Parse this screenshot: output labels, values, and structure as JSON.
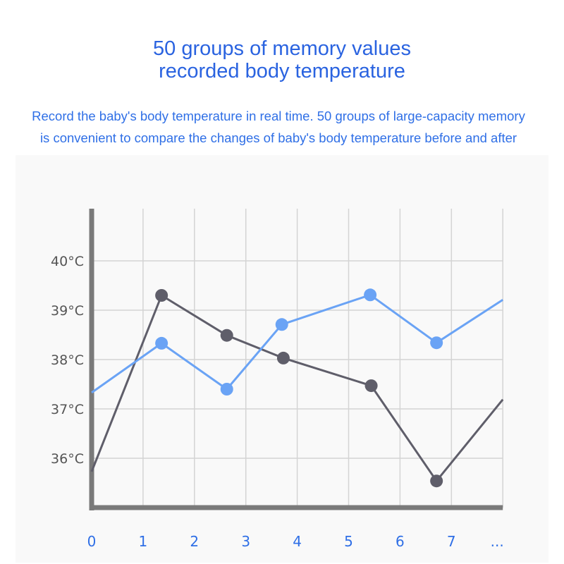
{
  "header": {
    "title_line1": "50 groups of memory values",
    "title_line2": "recorded body temperature",
    "subtitle_line1": "Record the baby's body temperature in real time. 50 groups of large-capacity memory",
    "subtitle_line2": "is convenient to compare the changes of baby's body temperature before and after"
  },
  "chart_data": {
    "type": "line",
    "title": "",
    "xlabel": "",
    "ylabel": "",
    "xlim": [
      0,
      8
    ],
    "ylim": [
      35,
      41
    ],
    "grid": true,
    "x_ticks": [
      "0",
      "1",
      "2",
      "3",
      "4",
      "5",
      "6",
      "7",
      "..."
    ],
    "y_ticks": [
      "36°C",
      "37°C",
      "38°C",
      "39°C",
      "40°C"
    ],
    "y_tick_values": [
      36,
      37,
      38,
      39,
      40
    ],
    "colors": {
      "dark": "#5f5e6a",
      "blue": "#6aa3f5",
      "axis": "#7a7a7a",
      "grid": "#d4d4d4",
      "title": "#2a63e0"
    },
    "series": [
      {
        "color": "#5f5e6a",
        "x": [
          0,
          1.36,
          2.63,
          3.73,
          5.44,
          6.71,
          8
        ],
        "y": [
          35.73,
          39.3,
          38.49,
          38.03,
          37.47,
          35.54,
          37.19
        ]
      },
      {
        "color": "#6aa3f5",
        "x": [
          0,
          1.36,
          2.63,
          3.7,
          5.42,
          6.71,
          8
        ],
        "y": [
          37.33,
          38.33,
          37.4,
          38.71,
          39.31,
          38.34,
          39.21
        ]
      }
    ]
  }
}
